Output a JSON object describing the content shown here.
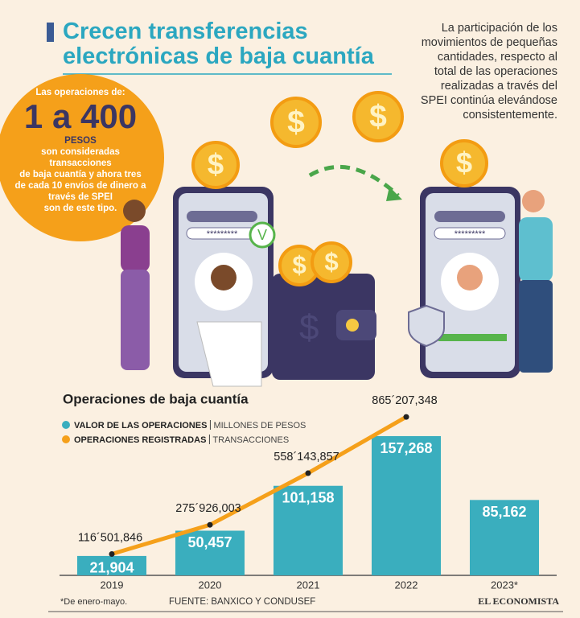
{
  "header": {
    "title_lines": [
      "Crecen transferencias",
      "electrónicas de baja cuantía"
    ]
  },
  "intro": {
    "lines": [
      "La participación de los",
      "movimientos de pequeñas",
      "cantidades, respecto al",
      "total de las operaciones",
      "realizadas a través del",
      "SPEI continúa elevándose",
      "consistentemente."
    ]
  },
  "badge": {
    "lead": "Las operaciones de:",
    "range": "1 a 400",
    "unit": "PESOS",
    "lines": [
      "son consideradas transacciones",
      "de baja cuantía y ahora tres",
      "de cada 10 envíos de dinero a",
      "través de SPEI",
      "son de este tipo."
    ]
  },
  "illustration": {
    "password": "*********",
    "check": "V",
    "coin": "$"
  },
  "chart_data": {
    "type": "bar",
    "title": "Operaciones de baja cuantía",
    "categories": [
      "2019",
      "2020",
      "2021",
      "2022",
      "2023*"
    ],
    "series": [
      {
        "name": "VALOR DE LAS OPERACIONES",
        "unit": "MILLONES DE PESOS",
        "color": "#3aaebe",
        "values": [
          21904,
          50457,
          101158,
          157268,
          85162
        ],
        "value_labels": [
          "21,904",
          "50,457",
          "101,158",
          "157,268",
          "85,162"
        ]
      },
      {
        "name": "OPERACIONES REGISTRADAS",
        "unit": "TRANSACCIONES",
        "color": "#f5a01a",
        "axis": "y2",
        "values": [
          116501846,
          275926003,
          558143857,
          865207348,
          null
        ],
        "value_labels": [
          "116´501,846",
          "275´926,003",
          "558´143,857",
          "865´207,348",
          null
        ]
      }
    ],
    "ylim": [
      0,
      180000
    ],
    "y2lim": [
      0,
      870000000
    ]
  },
  "footer": {
    "note": "*De enero-mayo.",
    "source": "FUENTE: BANXICO Y CONDUSEF",
    "brand": "EL ECONOMISTA"
  }
}
